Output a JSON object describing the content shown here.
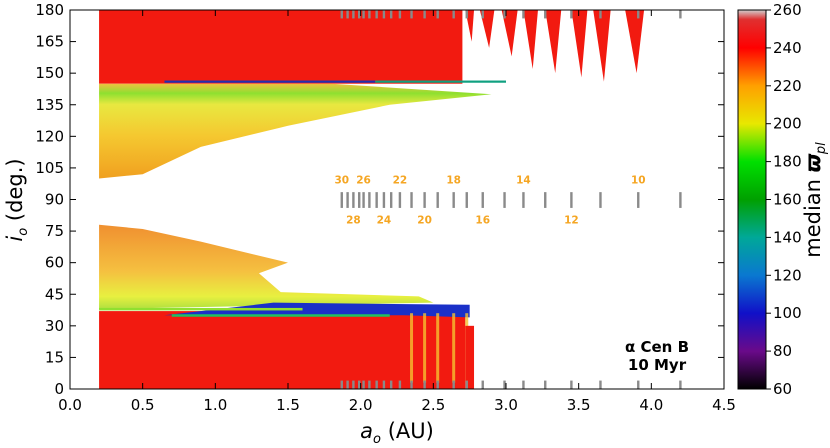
{
  "chart_data": {
    "type": "heatmap",
    "xlabel": "a_o (AU)",
    "xlabel_base": "a",
    "xlabel_sub": "o",
    "xlabel_unit": " (AU)",
    "ylabel": "i_o (deg.)",
    "ylabel_base": "i",
    "ylabel_sub": "o",
    "ylabel_unit": " (deg.)",
    "xlim": [
      0.0,
      4.5
    ],
    "ylim": [
      0,
      180
    ],
    "xticks": [
      "0.0",
      "0.5",
      "1.0",
      "1.5",
      "2.0",
      "2.5",
      "3.0",
      "3.5",
      "4.0",
      "4.5"
    ],
    "yticks": [
      "0",
      "15",
      "30",
      "45",
      "60",
      "75",
      "90",
      "105",
      "120",
      "135",
      "150",
      "165",
      "180"
    ],
    "colorbar": {
      "label": "median ϖ_pl",
      "label_base": "median ",
      "label_symbol": "ϖ",
      "label_sub": "pl",
      "min": 60,
      "max": 260,
      "ticks": [
        "60",
        "80",
        "100",
        "120",
        "140",
        "160",
        "180",
        "200",
        "220",
        "240",
        "260"
      ],
      "stops": [
        {
          "value": 60,
          "color": "#000000"
        },
        {
          "value": 80,
          "color": "#6a0a8a"
        },
        {
          "value": 100,
          "color": "#1010c8"
        },
        {
          "value": 120,
          "color": "#0a78d0"
        },
        {
          "value": 140,
          "color": "#00a898"
        },
        {
          "value": 160,
          "color": "#00a000"
        },
        {
          "value": 180,
          "color": "#00e000"
        },
        {
          "value": 200,
          "color": "#e8e800"
        },
        {
          "value": 220,
          "color": "#ffa000"
        },
        {
          "value": 240,
          "color": "#ff0000"
        },
        {
          "value": 255,
          "color": "#e03030"
        },
        {
          "value": 260,
          "color": "#d0d0d0"
        }
      ]
    },
    "annotation_line1": "α Cen B",
    "annotation_line2": "10 Myr",
    "resonance_labels_upper": [
      {
        "label": "30",
        "a": 1.87
      },
      {
        "label": "26",
        "a": 2.02
      },
      {
        "label": "22",
        "a": 2.27
      },
      {
        "label": "18",
        "a": 2.64
      },
      {
        "label": "14",
        "a": 3.12
      },
      {
        "label": "10",
        "a": 3.91
      }
    ],
    "resonance_labels_lower": [
      {
        "label": "28",
        "a": 1.95
      },
      {
        "label": "24",
        "a": 2.16
      },
      {
        "label": "20",
        "a": 2.44
      },
      {
        "label": "16",
        "a": 2.84
      },
      {
        "label": "12",
        "a": 3.45
      }
    ],
    "resonance_positions": [
      1.87,
      1.91,
      1.95,
      1.99,
      2.02,
      2.06,
      2.11,
      2.16,
      2.21,
      2.27,
      2.35,
      2.44,
      2.53,
      2.64,
      2.73,
      2.84,
      2.99,
      3.12,
      3.27,
      3.45,
      3.65,
      3.91,
      4.2
    ],
    "regions": [
      {
        "name": "upper-red-retrograde",
        "a": [
          0.2,
          2.7
        ],
        "i": [
          145,
          180
        ],
        "median": 245
      },
      {
        "name": "upper-stable-gradient",
        "a": [
          0.2,
          1.8
        ],
        "i": [
          100,
          145
        ],
        "median": 212
      },
      {
        "name": "lower-stable-gradient",
        "a": [
          0.2,
          1.6
        ],
        "i": [
          38,
          78
        ],
        "median": 215
      },
      {
        "name": "lower-red-prograde",
        "a": [
          0.2,
          2.73
        ],
        "i": [
          0,
          37
        ],
        "median": 245
      },
      {
        "name": "blue-band",
        "a": [
          0.65,
          2.73
        ],
        "i": [
          35,
          41
        ],
        "median": 105
      }
    ]
  }
}
